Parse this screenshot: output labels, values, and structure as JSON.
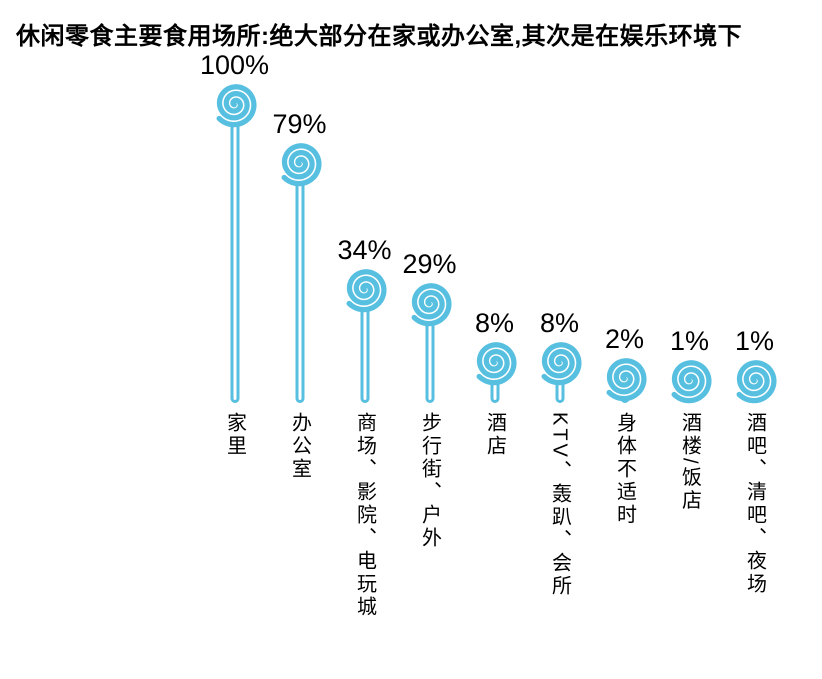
{
  "title": "休闲零食主要食用场所:绝大部分在家或办公室,其次是在娱乐环境下",
  "colors": {
    "lollipop_blue": "#57BFDF",
    "text_black": "#000000",
    "background": "#FFFFFF"
  },
  "chart_data": {
    "type": "bar",
    "variant": "lollipop",
    "title": "休闲零食主要食用场所:绝大部分在家或办公室,其次是在娱乐环境下",
    "categories": [
      "家里",
      "办公室",
      "商场、影院、电玩城",
      "步行街、户外",
      "酒店",
      "KTV、轰趴、会所",
      "身体不适时",
      "酒楼/饭店",
      "酒吧、清吧、夜场"
    ],
    "values": [
      100,
      79,
      34,
      29,
      8,
      8,
      2,
      1,
      1
    ],
    "value_labels": [
      "100%",
      "79%",
      "34%",
      "29%",
      "8%",
      "8%",
      "2%",
      "1%",
      "1%"
    ],
    "unit": "%",
    "xlabel": "",
    "ylabel": "",
    "ylim": [
      0,
      100
    ],
    "grid": false,
    "legend": false,
    "orientation": "vertical",
    "category_label_style": "vertical-text",
    "marker": "spiral-lollipop-icon"
  }
}
